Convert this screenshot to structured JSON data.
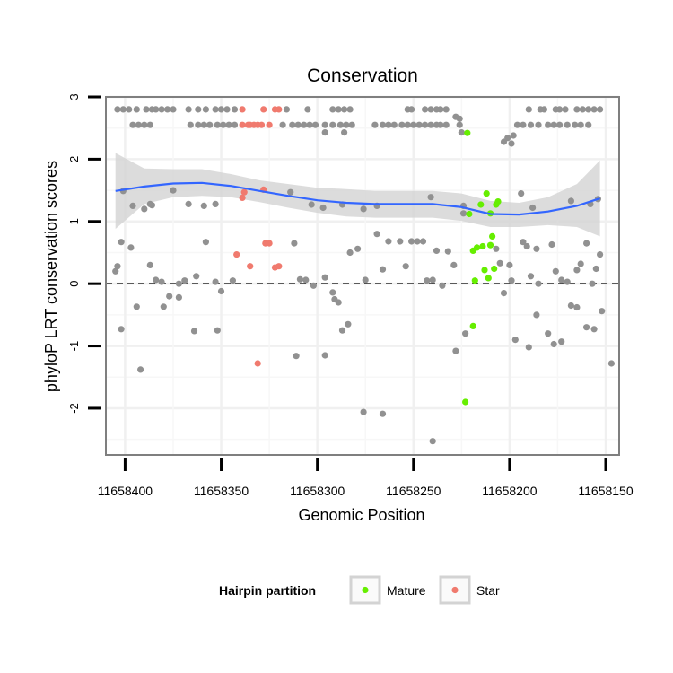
{
  "chart_data": {
    "type": "scatter",
    "title": "Conservation",
    "xlabel": "Genomic Position",
    "ylabel": "phyloP LRT conservation scores",
    "x_reversed": true,
    "xlim": [
      11658410,
      11658143
    ],
    "ylim": [
      -2.75,
      3.0
    ],
    "x_ticks": [
      11658400,
      11658350,
      11658300,
      11658250,
      11658200,
      11658150
    ],
    "x_tick_labels": [
      "11658400",
      "11658350",
      "11658300",
      "11658250",
      "11658200",
      "11658150"
    ],
    "y_ticks": [
      3,
      2,
      1,
      0,
      -1,
      -2
    ],
    "y_tick_labels": [
      "3",
      "2",
      "1",
      "0",
      "-1",
      "-2"
    ],
    "hline": 0,
    "grid": true,
    "legend": {
      "title": "Hairpin partition",
      "position": "bottom",
      "entries": [
        {
          "label": "Mature",
          "color": "#66ee00"
        },
        {
          "label": "Star",
          "color": "#f07a6e"
        }
      ]
    },
    "colors": {
      "other": "#919191",
      "Mature": "#66ee00",
      "Star": "#f07a6e",
      "smooth": "#3366ff",
      "band": "#d3d3d3"
    },
    "smooth": {
      "x": [
        11658405,
        11658390,
        11658375,
        11658360,
        11658345,
        11658330,
        11658315,
        11658300,
        11658285,
        11658270,
        11658255,
        11658240,
        11658225,
        11658210,
        11658195,
        11658180,
        11658165,
        11658153
      ],
      "y": [
        1.49,
        1.56,
        1.61,
        1.62,
        1.57,
        1.49,
        1.41,
        1.34,
        1.3,
        1.28,
        1.28,
        1.28,
        1.23,
        1.12,
        1.11,
        1.16,
        1.25,
        1.37
      ],
      "lower": [
        0.88,
        1.28,
        1.39,
        1.41,
        1.39,
        1.31,
        1.22,
        1.14,
        1.08,
        1.06,
        1.06,
        1.06,
        1.01,
        0.91,
        0.91,
        0.94,
        0.91,
        0.76
      ],
      "upper": [
        2.1,
        1.85,
        1.84,
        1.84,
        1.76,
        1.66,
        1.6,
        1.54,
        1.52,
        1.49,
        1.49,
        1.49,
        1.45,
        1.33,
        1.3,
        1.39,
        1.6,
        1.98
      ]
    },
    "series": [
      {
        "name": "Mature",
        "points": [
          [
            11658222,
            2.42
          ],
          [
            11658221,
            1.12
          ],
          [
            11658219,
            0.53
          ],
          [
            11658218,
            0.05
          ],
          [
            11658219,
            -0.68
          ],
          [
            11658223,
            -1.9
          ],
          [
            11658217,
            0.58
          ],
          [
            11658215,
            1.27
          ],
          [
            11658214,
            0.6
          ],
          [
            11658212,
            1.45
          ],
          [
            11658213,
            0.22
          ],
          [
            11658211,
            0.09
          ],
          [
            11658210,
            1.13
          ],
          [
            11658210,
            0.62
          ],
          [
            11658209,
            0.76
          ],
          [
            11658208,
            0.24
          ],
          [
            11658207,
            1.27
          ],
          [
            11658206,
            1.32
          ]
        ]
      },
      {
        "name": "Star",
        "points": [
          [
            11658339,
            2.8
          ],
          [
            11658339,
            2.55
          ],
          [
            11658338,
            1.47
          ],
          [
            11658339,
            1.38
          ],
          [
            11658336,
            2.55
          ],
          [
            11658335,
            2.55
          ],
          [
            11658333,
            2.55
          ],
          [
            11658331,
            2.55
          ],
          [
            11658329,
            2.55
          ],
          [
            11658328,
            2.8
          ],
          [
            11658325,
            2.55
          ],
          [
            11658322,
            2.8
          ],
          [
            11658320,
            2.8
          ],
          [
            11658328,
            1.51
          ],
          [
            11658327,
            0.65
          ],
          [
            11658325,
            0.65
          ],
          [
            11658320,
            0.28
          ],
          [
            11658322,
            0.26
          ],
          [
            11658342,
            0.47
          ],
          [
            11658335,
            0.28
          ],
          [
            11658331,
            -1.28
          ]
        ]
      },
      {
        "name": "",
        "points": [
          [
            11658404,
            2.8
          ],
          [
            11658401,
            2.8
          ],
          [
            11658398,
            2.8
          ],
          [
            11658394,
            2.8
          ],
          [
            11658389,
            2.8
          ],
          [
            11658386,
            2.8
          ],
          [
            11658384,
            2.8
          ],
          [
            11658381,
            2.8
          ],
          [
            11658378,
            2.8
          ],
          [
            11658375,
            2.8
          ],
          [
            11658367,
            2.8
          ],
          [
            11658362,
            2.8
          ],
          [
            11658358,
            2.8
          ],
          [
            11658353,
            2.8
          ],
          [
            11658350,
            2.8
          ],
          [
            11658347,
            2.8
          ],
          [
            11658343,
            2.8
          ],
          [
            11658316,
            2.8
          ],
          [
            11658305,
            2.8
          ],
          [
            11658292,
            2.8
          ],
          [
            11658289,
            2.8
          ],
          [
            11658286,
            2.8
          ],
          [
            11658283,
            2.8
          ],
          [
            11658253,
            2.8
          ],
          [
            11658251,
            2.8
          ],
          [
            11658244,
            2.8
          ],
          [
            11658241,
            2.8
          ],
          [
            11658238,
            2.8
          ],
          [
            11658236,
            2.8
          ],
          [
            11658233,
            2.8
          ],
          [
            11658190,
            2.8
          ],
          [
            11658184,
            2.8
          ],
          [
            11658182,
            2.8
          ],
          [
            11658176,
            2.8
          ],
          [
            11658174,
            2.8
          ],
          [
            11658171,
            2.8
          ],
          [
            11658165,
            2.8
          ],
          [
            11658162,
            2.8
          ],
          [
            11658159,
            2.8
          ],
          [
            11658156,
            2.8
          ],
          [
            11658153,
            2.8
          ],
          [
            11658396,
            2.55
          ],
          [
            11658393,
            2.55
          ],
          [
            11658390,
            2.55
          ],
          [
            11658387,
            2.55
          ],
          [
            11658366,
            2.55
          ],
          [
            11658362,
            2.55
          ],
          [
            11658359,
            2.55
          ],
          [
            11658356,
            2.55
          ],
          [
            11658352,
            2.55
          ],
          [
            11658349,
            2.55
          ],
          [
            11658346,
            2.55
          ],
          [
            11658343,
            2.55
          ],
          [
            11658318,
            2.55
          ],
          [
            11658313,
            2.55
          ],
          [
            11658310,
            2.55
          ],
          [
            11658307,
            2.55
          ],
          [
            11658304,
            2.55
          ],
          [
            11658301,
            2.55
          ],
          [
            11658296,
            2.55
          ],
          [
            11658292,
            2.55
          ],
          [
            11658288,
            2.55
          ],
          [
            11658285,
            2.55
          ],
          [
            11658282,
            2.55
          ],
          [
            11658270,
            2.55
          ],
          [
            11658266,
            2.55
          ],
          [
            11658263,
            2.55
          ],
          [
            11658260,
            2.55
          ],
          [
            11658256,
            2.55
          ],
          [
            11658253,
            2.55
          ],
          [
            11658250,
            2.55
          ],
          [
            11658247,
            2.55
          ],
          [
            11658244,
            2.55
          ],
          [
            11658241,
            2.55
          ],
          [
            11658238,
            2.55
          ],
          [
            11658236,
            2.55
          ],
          [
            11658233,
            2.55
          ],
          [
            11658226,
            2.55
          ],
          [
            11658196,
            2.55
          ],
          [
            11658193,
            2.55
          ],
          [
            11658189,
            2.55
          ],
          [
            11658185,
            2.55
          ],
          [
            11658180,
            2.55
          ],
          [
            11658177,
            2.55
          ],
          [
            11658174,
            2.55
          ],
          [
            11658170,
            2.55
          ],
          [
            11658166,
            2.55
          ],
          [
            11658163,
            2.55
          ],
          [
            11658159,
            2.55
          ],
          [
            11658296,
            2.43
          ],
          [
            11658286,
            2.43
          ],
          [
            11658225,
            2.43
          ],
          [
            11658226,
            2.65
          ],
          [
            11658228,
            2.68
          ],
          [
            11658203,
            2.28
          ],
          [
            11658201,
            2.34
          ],
          [
            11658199,
            2.25
          ],
          [
            11658198,
            2.38
          ],
          [
            11658401,
            1.49
          ],
          [
            11658396,
            1.25
          ],
          [
            11658390,
            1.2
          ],
          [
            11658386,
            1.26
          ],
          [
            11658375,
            1.5
          ],
          [
            11658367,
            1.28
          ],
          [
            11658359,
            1.25
          ],
          [
            11658353,
            1.28
          ],
          [
            11658314,
            1.47
          ],
          [
            11658303,
            1.27
          ],
          [
            11658297,
            1.22
          ],
          [
            11658287,
            1.27
          ],
          [
            11658276,
            1.2
          ],
          [
            11658269,
            1.25
          ],
          [
            11658241,
            1.39
          ],
          [
            11658224,
            1.25
          ],
          [
            11658194,
            1.45
          ],
          [
            11658188,
            1.22
          ],
          [
            11658168,
            1.33
          ],
          [
            11658158,
            1.28
          ],
          [
            11658154,
            1.36
          ],
          [
            11658387,
            1.28
          ],
          [
            11658405,
            0.2
          ],
          [
            11658404,
            0.28
          ],
          [
            11658402,
            0.67
          ],
          [
            11658397,
            0.58
          ],
          [
            11658394,
            -0.37
          ],
          [
            11658387,
            0.3
          ],
          [
            11658384,
            0.06
          ],
          [
            11658381,
            0.03
          ],
          [
            11658377,
            -0.2
          ],
          [
            11658372,
            0.0
          ],
          [
            11658369,
            0.05
          ],
          [
            11658363,
            0.12
          ],
          [
            11658358,
            0.67
          ],
          [
            11658353,
            0.03
          ],
          [
            11658350,
            -0.12
          ],
          [
            11658344,
            0.05
          ],
          [
            11658312,
            0.65
          ],
          [
            11658309,
            0.07
          ],
          [
            11658306,
            0.06
          ],
          [
            11658302,
            -0.03
          ],
          [
            11658296,
            0.1
          ],
          [
            11658292,
            -0.14
          ],
          [
            11658289,
            -0.3
          ],
          [
            11658283,
            0.5
          ],
          [
            11658279,
            0.56
          ],
          [
            11658275,
            0.06
          ],
          [
            11658269,
            0.8
          ],
          [
            11658266,
            0.23
          ],
          [
            11658263,
            0.68
          ],
          [
            11658257,
            0.68
          ],
          [
            11658254,
            0.28
          ],
          [
            11658251,
            0.68
          ],
          [
            11658248,
            0.68
          ],
          [
            11658245,
            0.68
          ],
          [
            11658243,
            0.05
          ],
          [
            11658240,
            0.06
          ],
          [
            11658238,
            0.53
          ],
          [
            11658235,
            -0.03
          ],
          [
            11658232,
            0.52
          ],
          [
            11658229,
            0.3
          ],
          [
            11658224,
            1.13
          ],
          [
            11658207,
            0.56
          ],
          [
            11658205,
            0.33
          ],
          [
            11658203,
            -0.15
          ],
          [
            11658200,
            0.3
          ],
          [
            11658199,
            0.05
          ],
          [
            11658193,
            0.67
          ],
          [
            11658191,
            0.6
          ],
          [
            11658189,
            0.12
          ],
          [
            11658186,
            0.56
          ],
          [
            11658178,
            0.63
          ],
          [
            11658176,
            0.2
          ],
          [
            11658173,
            0.06
          ],
          [
            11658170,
            0.03
          ],
          [
            11658165,
            0.22
          ],
          [
            11658163,
            0.32
          ],
          [
            11658160,
            0.65
          ],
          [
            11658155,
            0.24
          ],
          [
            11658153,
            0.47
          ],
          [
            11658157,
            0.0
          ],
          [
            11658185,
            0.0
          ],
          [
            11658402,
            -0.73
          ],
          [
            11658392,
            -1.38
          ],
          [
            11658380,
            -0.37
          ],
          [
            11658372,
            -0.22
          ],
          [
            11658364,
            -0.76
          ],
          [
            11658352,
            -0.75
          ],
          [
            11658311,
            -1.16
          ],
          [
            11658296,
            -1.15
          ],
          [
            11658291,
            -0.25
          ],
          [
            11658287,
            -0.75
          ],
          [
            11658284,
            -0.65
          ],
          [
            11658276,
            -2.06
          ],
          [
            11658266,
            -2.09
          ],
          [
            11658240,
            -2.53
          ],
          [
            11658228,
            -1.08
          ],
          [
            11658223,
            -0.8
          ],
          [
            11658197,
            -0.9
          ],
          [
            11658190,
            -1.02
          ],
          [
            11658186,
            -0.5
          ],
          [
            11658180,
            -0.8
          ],
          [
            11658177,
            -0.97
          ],
          [
            11658173,
            -0.93
          ],
          [
            11658168,
            -0.35
          ],
          [
            11658165,
            -0.38
          ],
          [
            11658160,
            -0.7
          ],
          [
            11658156,
            -0.73
          ],
          [
            11658152,
            -0.44
          ],
          [
            11658147,
            -1.28
          ]
        ]
      }
    ]
  }
}
